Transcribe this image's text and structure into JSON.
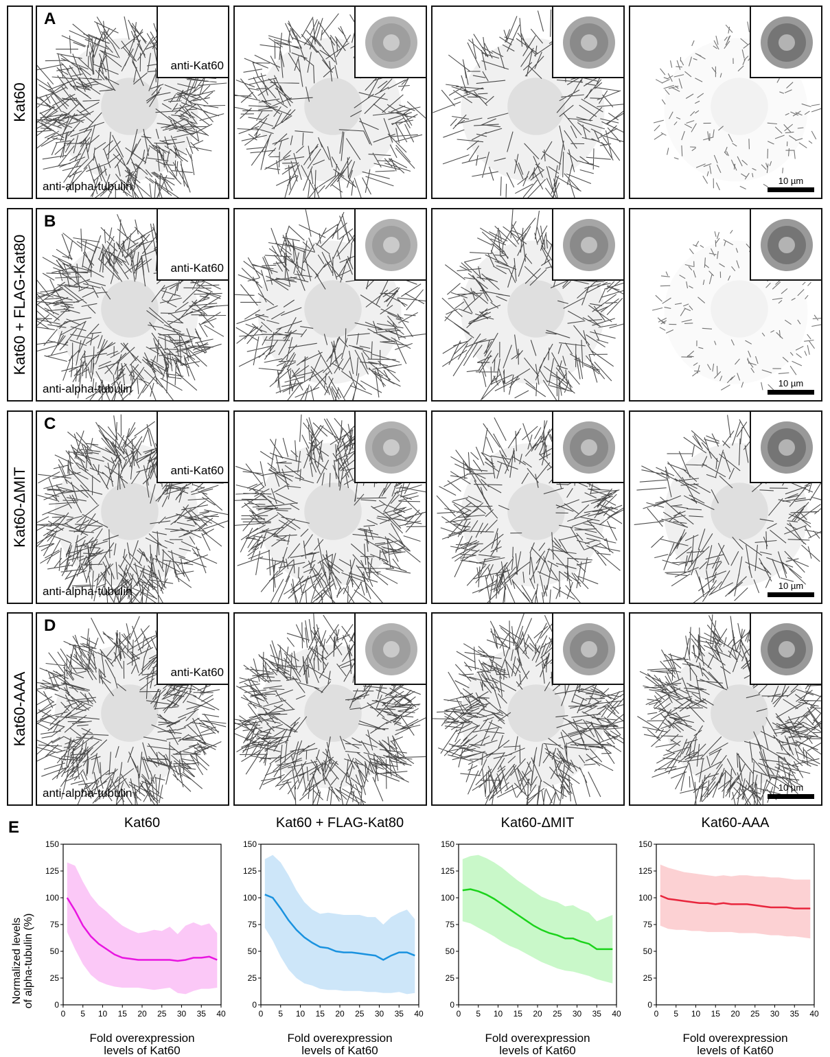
{
  "rows": [
    {
      "letter": "A",
      "label": "Kat60",
      "inset_label": "anti-Kat60",
      "tubulin_label": "anti-alpha-tubulin",
      "scale": "10 µm"
    },
    {
      "letter": "B",
      "label": "Kat60 + FLAG-Kat80",
      "inset_label": "anti-Kat60",
      "tubulin_label": "anti-alpha-tubulin",
      "scale": "10 µm"
    },
    {
      "letter": "C",
      "label": "Kat60-ΔMIT",
      "inset_label": "anti-Kat60",
      "tubulin_label": "anti-alpha-tubulin",
      "scale": "10 µm"
    },
    {
      "letter": "D",
      "label": "Kat60-AAA",
      "inset_label": "anti-Kat60",
      "tubulin_label": "anti-alpha-tubulin",
      "scale": "10 µm"
    }
  ],
  "panel_e": {
    "letter": "E",
    "ylabel": "Normalized levels\nof alpha-tubulin (%)",
    "xlabel_line1": "Fold overexpression",
    "xlabel_line2": "levels of Kat60"
  },
  "chart_data": [
    {
      "type": "line",
      "title": "Kat60",
      "color": "#e815e0",
      "band_color": "#fbc8f7",
      "xlim": [
        0,
        40
      ],
      "ylim": [
        0,
        150
      ],
      "xticks": [
        0,
        5,
        10,
        15,
        20,
        25,
        30,
        35,
        40
      ],
      "yticks": [
        0,
        25,
        50,
        75,
        100,
        125,
        150
      ],
      "x": [
        1,
        3,
        5,
        7,
        9,
        11,
        13,
        15,
        17,
        19,
        21,
        23,
        25,
        27,
        29,
        31,
        33,
        35,
        37,
        39
      ],
      "mean": [
        100,
        88,
        74,
        64,
        57,
        52,
        47,
        44,
        43,
        42,
        42,
        42,
        42,
        42,
        41,
        42,
        44,
        44,
        45,
        42
      ],
      "upper": [
        133,
        130,
        115,
        102,
        93,
        87,
        80,
        74,
        70,
        67,
        68,
        70,
        69,
        73,
        66,
        74,
        77,
        74,
        76,
        67
      ],
      "lower": [
        68,
        52,
        38,
        28,
        22,
        19,
        17,
        16,
        16,
        16,
        15,
        14,
        15,
        16,
        11,
        10,
        13,
        15,
        15,
        16
      ]
    },
    {
      "type": "line",
      "title": "Kat60 + FLAG-Kat80",
      "color": "#1a92df",
      "band_color": "#cde6f9",
      "xlim": [
        0,
        40
      ],
      "ylim": [
        0,
        150
      ],
      "xticks": [
        0,
        5,
        10,
        15,
        20,
        25,
        30,
        35,
        40
      ],
      "yticks": [
        0,
        25,
        50,
        75,
        100,
        125,
        150
      ],
      "x": [
        1,
        3,
        5,
        7,
        9,
        11,
        13,
        15,
        17,
        19,
        21,
        23,
        25,
        27,
        29,
        31,
        33,
        35,
        37,
        39
      ],
      "mean": [
        103,
        100,
        90,
        79,
        70,
        63,
        58,
        54,
        53,
        50,
        49,
        49,
        48,
        47,
        46,
        42,
        46,
        49,
        49,
        46
      ],
      "upper": [
        136,
        140,
        133,
        121,
        107,
        96,
        89,
        85,
        86,
        85,
        84,
        84,
        84,
        82,
        82,
        75,
        82,
        86,
        89,
        80
      ],
      "lower": [
        72,
        60,
        45,
        33,
        25,
        20,
        18,
        15,
        14,
        14,
        13,
        13,
        13,
        12,
        12,
        11,
        11,
        12,
        10,
        11
      ]
    },
    {
      "type": "line",
      "title": "Kat60-ΔMIT",
      "color": "#1bd31b",
      "band_color": "#c9f8c9",
      "xlim": [
        0,
        40
      ],
      "ylim": [
        0,
        150
      ],
      "xticks": [
        0,
        5,
        10,
        15,
        20,
        25,
        30,
        35,
        40
      ],
      "yticks": [
        0,
        25,
        50,
        75,
        100,
        125,
        150
      ],
      "x": [
        1,
        3,
        5,
        7,
        9,
        11,
        13,
        15,
        17,
        19,
        21,
        23,
        25,
        27,
        29,
        31,
        33,
        35,
        37,
        39
      ],
      "mean": [
        107,
        108,
        106,
        103,
        99,
        94,
        89,
        84,
        79,
        74,
        70,
        67,
        65,
        62,
        62,
        59,
        57,
        52,
        52,
        52
      ],
      "upper": [
        136,
        139,
        140,
        137,
        133,
        128,
        122,
        116,
        111,
        106,
        101,
        98,
        96,
        92,
        93,
        89,
        86,
        78,
        81,
        84
      ],
      "lower": [
        78,
        76,
        72,
        68,
        64,
        59,
        55,
        52,
        48,
        44,
        40,
        37,
        34,
        32,
        31,
        29,
        27,
        24,
        22,
        20
      ]
    },
    {
      "type": "line",
      "title": "Kat60-AAA",
      "color": "#e8253c",
      "band_color": "#fcd1d3",
      "xlim": [
        0,
        40
      ],
      "ylim": [
        0,
        150
      ],
      "xticks": [
        0,
        5,
        10,
        15,
        20,
        25,
        30,
        35,
        40
      ],
      "yticks": [
        0,
        25,
        50,
        75,
        100,
        125,
        150
      ],
      "x": [
        1,
        3,
        5,
        7,
        9,
        11,
        13,
        15,
        17,
        19,
        21,
        23,
        25,
        27,
        29,
        31,
        33,
        35,
        37,
        39
      ],
      "mean": [
        102,
        99,
        98,
        97,
        96,
        95,
        95,
        94,
        95,
        94,
        94,
        94,
        93,
        92,
        91,
        91,
        91,
        90,
        90,
        90
      ],
      "upper": [
        131,
        128,
        126,
        124,
        123,
        122,
        121,
        120,
        121,
        120,
        121,
        121,
        120,
        120,
        119,
        119,
        118,
        117,
        117,
        117
      ],
      "lower": [
        74,
        71,
        70,
        70,
        69,
        69,
        68,
        68,
        68,
        68,
        67,
        67,
        67,
        66,
        65,
        65,
        64,
        64,
        63,
        62
      ]
    }
  ]
}
